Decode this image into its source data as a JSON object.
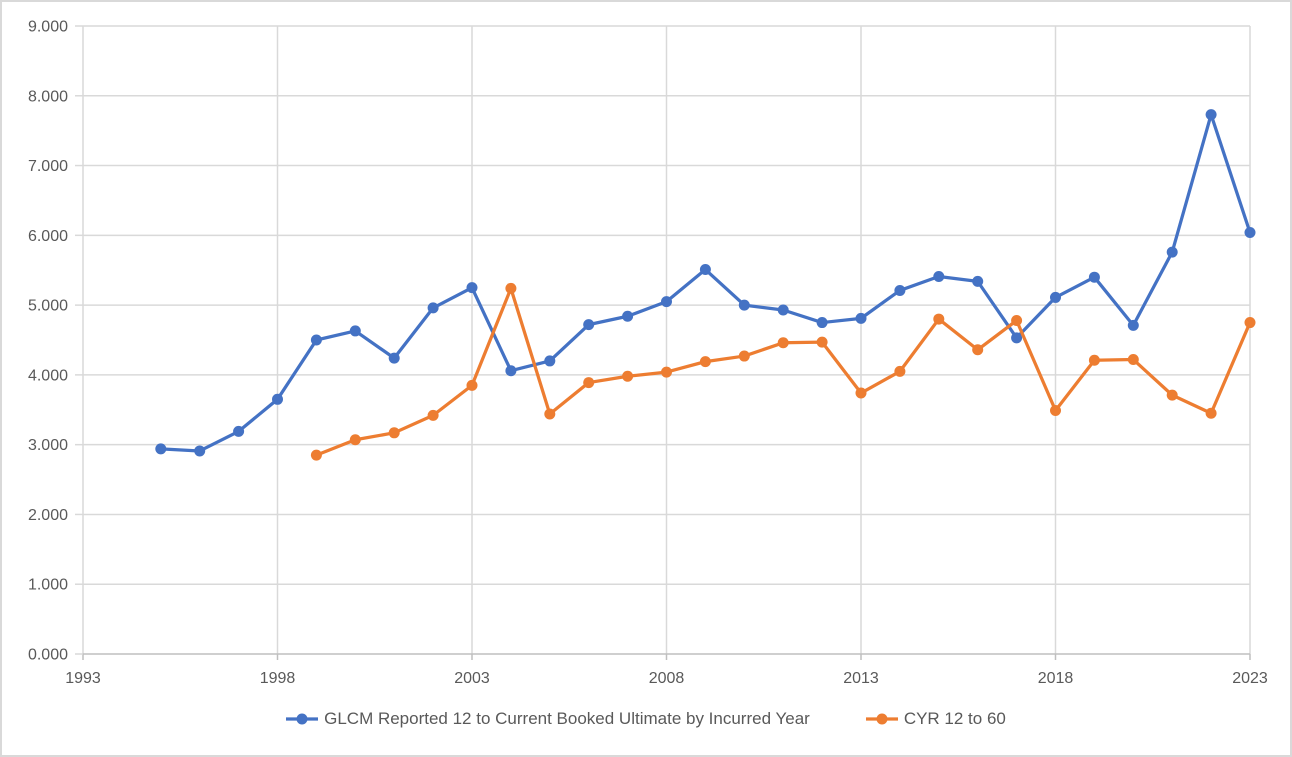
{
  "chart_data": {
    "type": "line",
    "title": "",
    "xlabel": "",
    "ylabel": "",
    "grid": true,
    "legend_position": "bottom",
    "x_axis": {
      "min": 1993,
      "max": 2023,
      "tick_labels": [
        "1993",
        "1998",
        "2003",
        "2008",
        "2013",
        "2018",
        "2023"
      ],
      "tick_values": [
        1993,
        1998,
        2003,
        2008,
        2013,
        2018,
        2023
      ]
    },
    "y_axis": {
      "min": 0,
      "max": 9,
      "step": 1,
      "tick_labels": [
        "0.000",
        "1.000",
        "2.000",
        "3.000",
        "4.000",
        "5.000",
        "6.000",
        "7.000",
        "8.000",
        "9.000"
      ],
      "tick_values": [
        0,
        1,
        2,
        3,
        4,
        5,
        6,
        7,
        8,
        9
      ]
    },
    "series": [
      {
        "name": "GLCM Reported 12 to Current Booked Ultimate by Incurred Year",
        "color": "#4472C4",
        "x": [
          1995,
          1996,
          1997,
          1998,
          1999,
          2000,
          2001,
          2002,
          2003,
          2004,
          2005,
          2006,
          2007,
          2008,
          2009,
          2010,
          2011,
          2012,
          2013,
          2014,
          2015,
          2016,
          2017,
          2018,
          2019,
          2020,
          2021,
          2022,
          2023
        ],
        "values": [
          2.94,
          2.91,
          3.19,
          3.65,
          4.5,
          4.63,
          4.24,
          4.96,
          5.25,
          4.06,
          4.2,
          4.72,
          4.84,
          5.05,
          5.51,
          5.0,
          4.93,
          4.75,
          4.81,
          5.21,
          5.41,
          5.34,
          4.53,
          5.11,
          5.4,
          4.71,
          5.76,
          7.73,
          6.04
        ]
      },
      {
        "name": "CYR 12 to 60",
        "color": "#ED7D31",
        "x": [
          1999,
          2000,
          2001,
          2002,
          2003,
          2004,
          2005,
          2006,
          2007,
          2008,
          2009,
          2010,
          2011,
          2012,
          2013,
          2014,
          2015,
          2016,
          2017,
          2018,
          2019,
          2020,
          2021,
          2022,
          2023
        ],
        "values": [
          2.85,
          3.07,
          3.17,
          3.42,
          3.85,
          5.24,
          3.44,
          3.89,
          3.98,
          4.04,
          4.19,
          4.27,
          4.46,
          4.47,
          3.74,
          4.05,
          4.8,
          4.36,
          4.78,
          3.49,
          4.21,
          4.22,
          3.71,
          3.45,
          4.75
        ]
      }
    ],
    "colors": {
      "gridline": "#d9d9d9",
      "axis_line": "#bfbfbf",
      "tick_label": "#595959",
      "background": "#ffffff",
      "chart_border": "#d9d9d9"
    }
  }
}
